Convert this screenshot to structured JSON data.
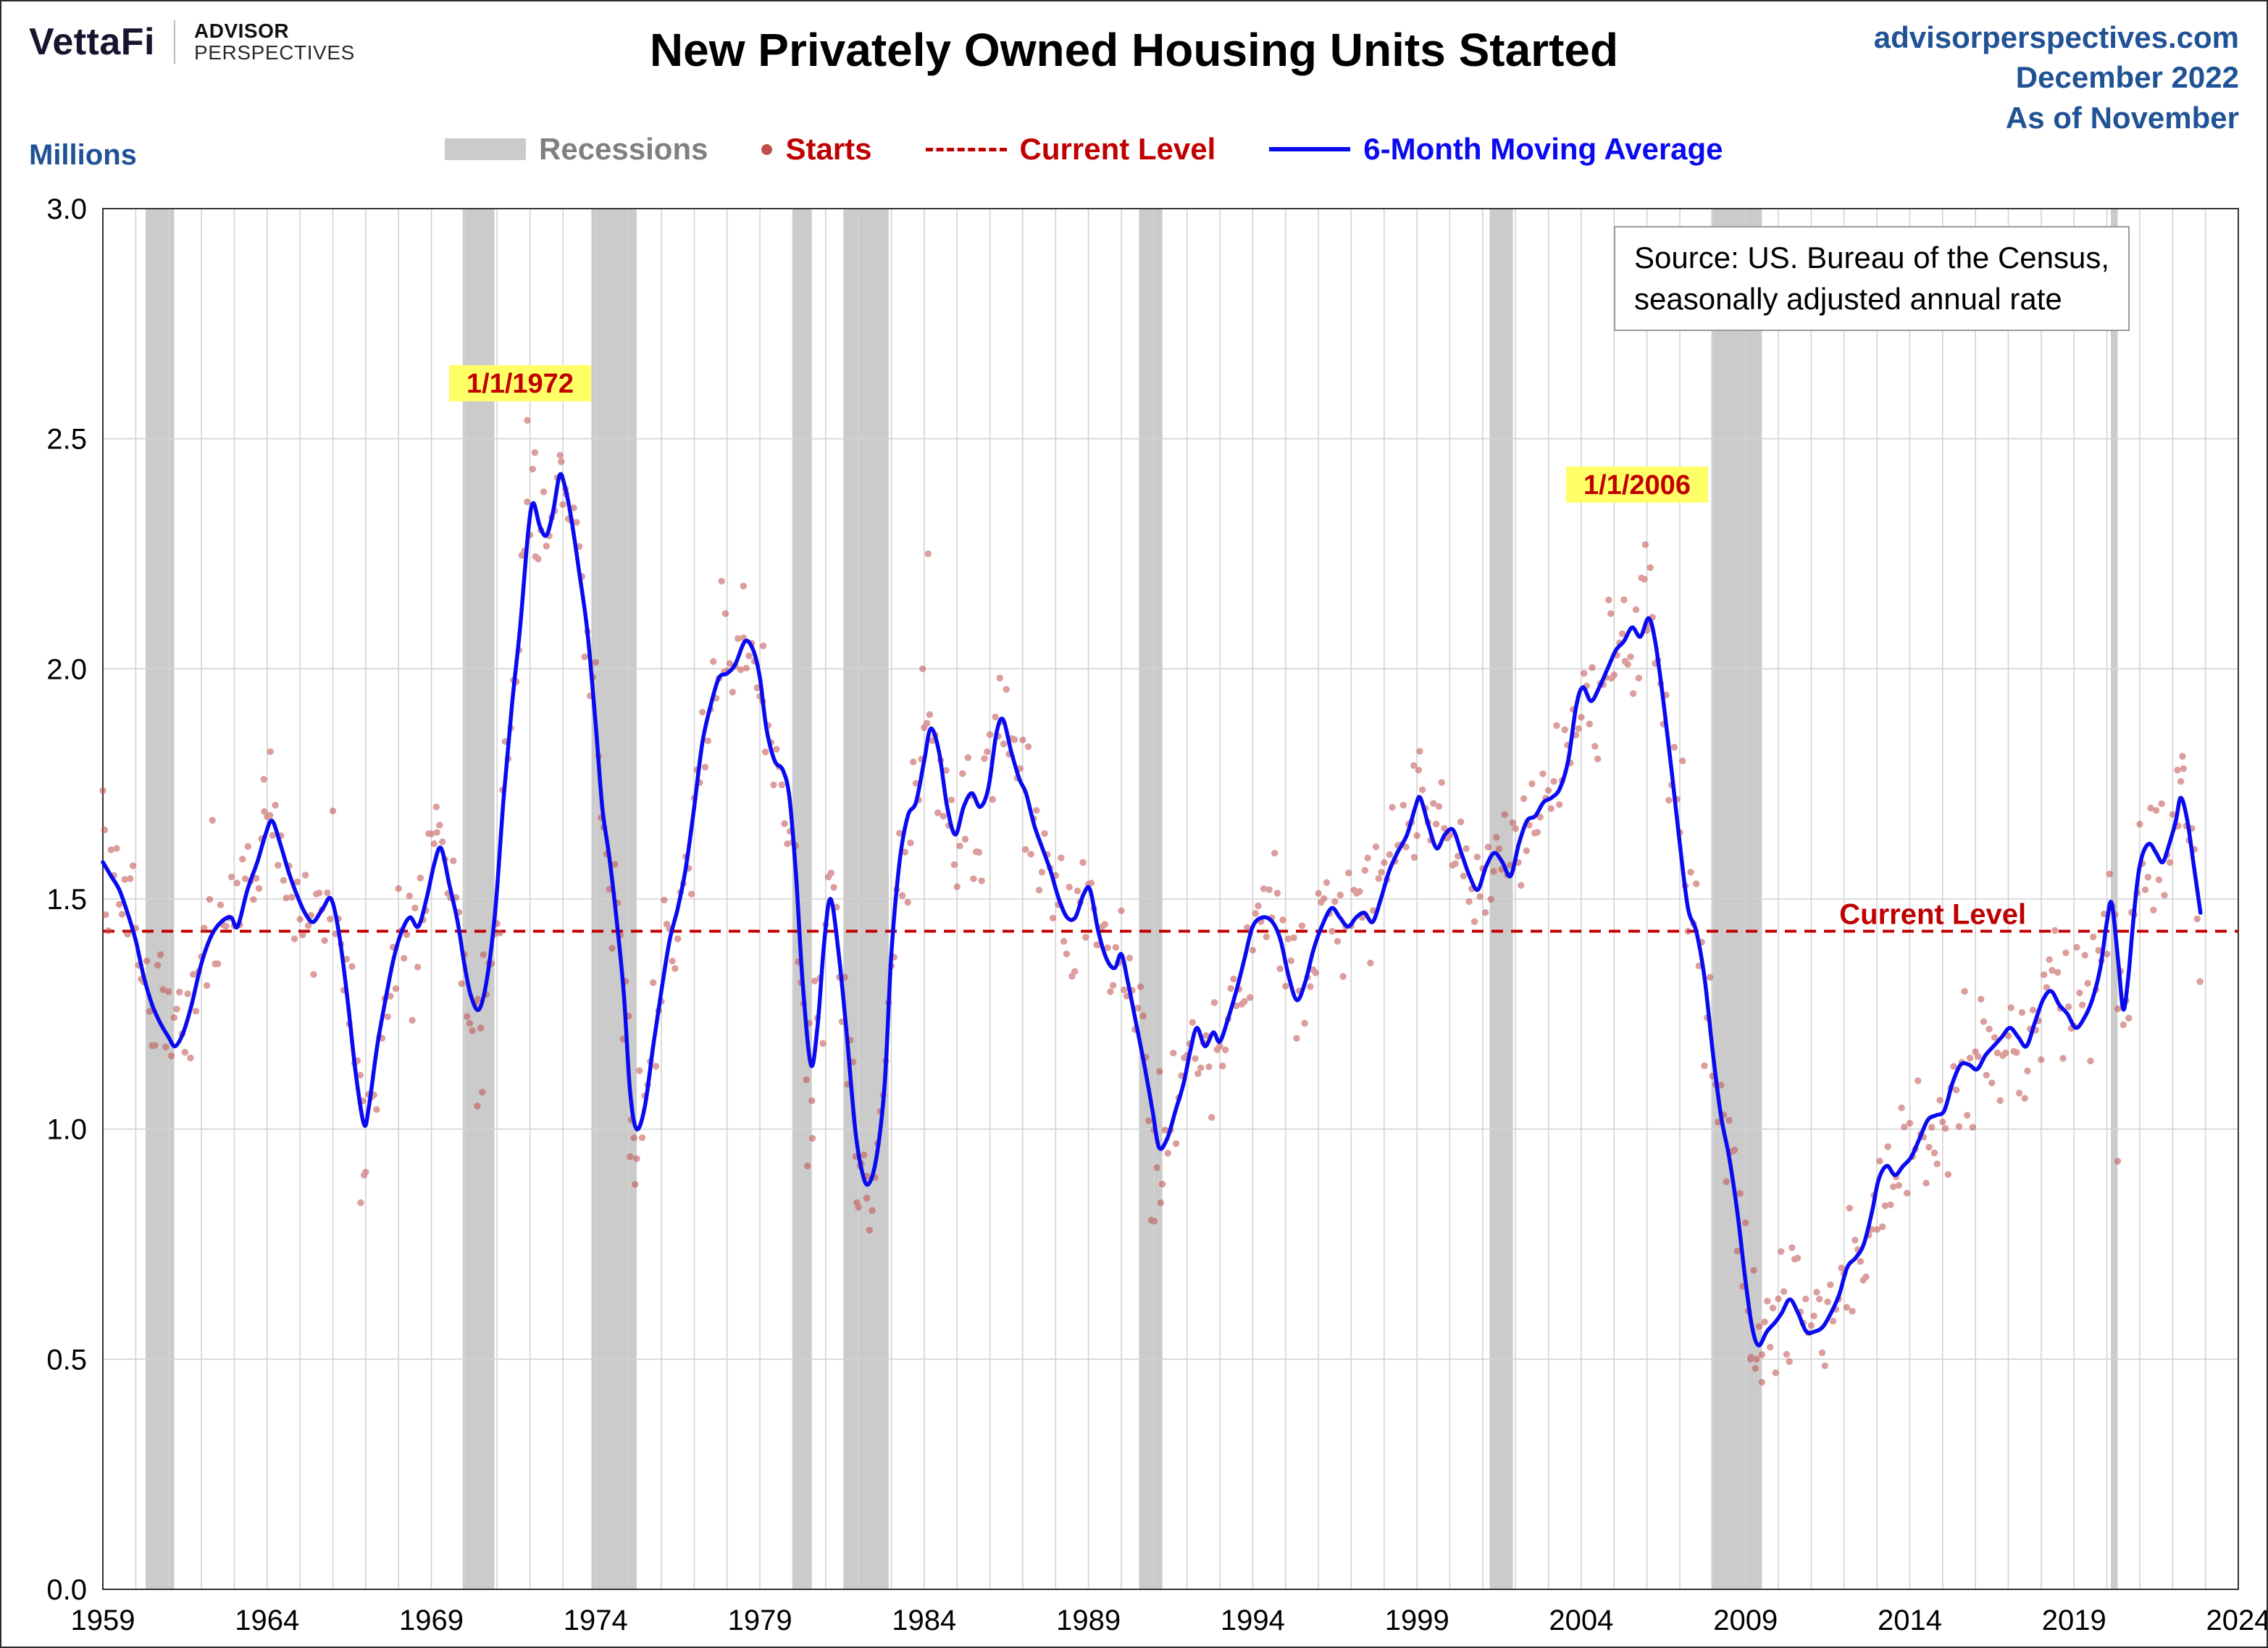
{
  "header": {
    "logo": {
      "brand": "VettaFi",
      "sub_line1": "ADVISOR",
      "sub_line2": "PERSPECTIVES"
    },
    "title": "New Privately Owned Housing Units Started",
    "meta": {
      "site": "advisorperspectives.com",
      "date": "December 2022",
      "as_of": "As of November"
    }
  },
  "legend": {
    "y_unit_label": "Millions",
    "items": [
      {
        "label": "Recessions"
      },
      {
        "label": "Starts"
      },
      {
        "label": "Current Level"
      },
      {
        "label": "6-Month Moving Average"
      }
    ]
  },
  "source_box": {
    "line1": "Source: US. Bureau of the Census,",
    "line2": "seasonally adjusted annual rate"
  },
  "colors": {
    "header_blue": "#205296",
    "ma_line": "#0a0af0",
    "current_level": "#c00000",
    "starts_dot": "#c0504d",
    "recession": "#cbcbcb",
    "annotation_bg": "#ffff66",
    "grid": "#d3d3d3",
    "frame": "#333333",
    "legend_gray": "#808080"
  },
  "chart_data": {
    "type": "scatter+line",
    "title": "New Privately Owned Housing Units Started",
    "ylabel": "Millions",
    "xlim": [
      1959,
      2024
    ],
    "ylim": [
      0.0,
      3.0
    ],
    "x_ticks": [
      1959,
      1964,
      1969,
      1974,
      1979,
      1984,
      1989,
      1994,
      1999,
      2004,
      2009,
      2014,
      2019,
      2024
    ],
    "y_ticks": [
      0.0,
      0.5,
      1.0,
      1.5,
      2.0,
      2.5,
      3.0
    ],
    "grid": true,
    "legend_position": "top",
    "current_level": 1.43,
    "current_level_label": "Current Level",
    "current_level_label_x": 2014.7,
    "annotations": [
      {
        "text": "1/1/1972",
        "x": 1971.7,
        "y": 2.6
      },
      {
        "text": "1/1/2006",
        "x": 2005.7,
        "y": 2.38
      }
    ],
    "recessions": [
      [
        1960.3,
        1961.17
      ],
      [
        1969.95,
        1970.92
      ],
      [
        1973.87,
        1975.25
      ],
      [
        1980.0,
        1980.58
      ],
      [
        1981.54,
        1982.92
      ],
      [
        1990.54,
        1991.25
      ],
      [
        2001.21,
        2001.92
      ],
      [
        2007.96,
        2009.5
      ],
      [
        2020.12,
        2020.33
      ]
    ],
    "series": [
      {
        "name": "Starts",
        "style": "scatter"
      },
      {
        "name": "6-Month Moving Average",
        "style": "line"
      }
    ],
    "moving_average": [
      [
        1959.0,
        1.58
      ],
      [
        1959.25,
        1.55
      ],
      [
        1959.5,
        1.52
      ],
      [
        1959.75,
        1.47
      ],
      [
        1960.0,
        1.41
      ],
      [
        1960.25,
        1.33
      ],
      [
        1960.5,
        1.27
      ],
      [
        1960.75,
        1.23
      ],
      [
        1961.0,
        1.2
      ],
      [
        1961.2,
        1.18
      ],
      [
        1961.45,
        1.21
      ],
      [
        1961.7,
        1.27
      ],
      [
        1962.0,
        1.36
      ],
      [
        1962.3,
        1.42
      ],
      [
        1962.6,
        1.45
      ],
      [
        1962.9,
        1.46
      ],
      [
        1963.1,
        1.44
      ],
      [
        1963.4,
        1.52
      ],
      [
        1963.7,
        1.58
      ],
      [
        1963.95,
        1.64
      ],
      [
        1964.15,
        1.67
      ],
      [
        1964.4,
        1.62
      ],
      [
        1964.65,
        1.56
      ],
      [
        1964.9,
        1.51
      ],
      [
        1965.15,
        1.47
      ],
      [
        1965.4,
        1.45
      ],
      [
        1965.7,
        1.48
      ],
      [
        1965.95,
        1.5
      ],
      [
        1966.2,
        1.42
      ],
      [
        1966.45,
        1.28
      ],
      [
        1966.7,
        1.12
      ],
      [
        1966.95,
        1.01
      ],
      [
        1967.1,
        1.05
      ],
      [
        1967.35,
        1.18
      ],
      [
        1967.6,
        1.28
      ],
      [
        1967.85,
        1.37
      ],
      [
        1968.1,
        1.43
      ],
      [
        1968.35,
        1.46
      ],
      [
        1968.6,
        1.44
      ],
      [
        1968.85,
        1.5
      ],
      [
        1969.1,
        1.58
      ],
      [
        1969.3,
        1.61
      ],
      [
        1969.55,
        1.53
      ],
      [
        1969.8,
        1.45
      ],
      [
        1970.0,
        1.36
      ],
      [
        1970.2,
        1.29
      ],
      [
        1970.45,
        1.26
      ],
      [
        1970.7,
        1.33
      ],
      [
        1970.95,
        1.48
      ],
      [
        1971.2,
        1.72
      ],
      [
        1971.45,
        1.92
      ],
      [
        1971.7,
        2.09
      ],
      [
        1971.95,
        2.3
      ],
      [
        1972.1,
        2.36
      ],
      [
        1972.3,
        2.31
      ],
      [
        1972.5,
        2.29
      ],
      [
        1972.7,
        2.34
      ],
      [
        1972.9,
        2.42
      ],
      [
        1973.05,
        2.4
      ],
      [
        1973.25,
        2.33
      ],
      [
        1973.5,
        2.21
      ],
      [
        1973.75,
        2.08
      ],
      [
        1974.0,
        1.88
      ],
      [
        1974.2,
        1.7
      ],
      [
        1974.4,
        1.6
      ],
      [
        1974.6,
        1.48
      ],
      [
        1974.85,
        1.3
      ],
      [
        1975.05,
        1.08
      ],
      [
        1975.25,
        1.0
      ],
      [
        1975.5,
        1.05
      ],
      [
        1975.75,
        1.18
      ],
      [
        1976.0,
        1.3
      ],
      [
        1976.25,
        1.41
      ],
      [
        1976.5,
        1.48
      ],
      [
        1976.75,
        1.57
      ],
      [
        1977.0,
        1.7
      ],
      [
        1977.25,
        1.84
      ],
      [
        1977.5,
        1.92
      ],
      [
        1977.75,
        1.98
      ],
      [
        1978.0,
        1.99
      ],
      [
        1978.25,
        2.01
      ],
      [
        1978.55,
        2.06
      ],
      [
        1978.8,
        2.04
      ],
      [
        1979.0,
        1.98
      ],
      [
        1979.2,
        1.87
      ],
      [
        1979.45,
        1.8
      ],
      [
        1979.7,
        1.78
      ],
      [
        1979.9,
        1.72
      ],
      [
        1980.1,
        1.55
      ],
      [
        1980.3,
        1.32
      ],
      [
        1980.55,
        1.14
      ],
      [
        1980.75,
        1.22
      ],
      [
        1980.95,
        1.4
      ],
      [
        1981.15,
        1.5
      ],
      [
        1981.4,
        1.38
      ],
      [
        1981.65,
        1.2
      ],
      [
        1981.9,
        1.0
      ],
      [
        1982.1,
        0.91
      ],
      [
        1982.3,
        0.88
      ],
      [
        1982.55,
        0.94
      ],
      [
        1982.8,
        1.1
      ],
      [
        1983.0,
        1.38
      ],
      [
        1983.25,
        1.58
      ],
      [
        1983.5,
        1.68
      ],
      [
        1983.75,
        1.71
      ],
      [
        1984.0,
        1.8
      ],
      [
        1984.2,
        1.87
      ],
      [
        1984.45,
        1.82
      ],
      [
        1984.7,
        1.7
      ],
      [
        1984.95,
        1.64
      ],
      [
        1985.2,
        1.7
      ],
      [
        1985.45,
        1.73
      ],
      [
        1985.7,
        1.7
      ],
      [
        1985.95,
        1.74
      ],
      [
        1986.2,
        1.86
      ],
      [
        1986.4,
        1.89
      ],
      [
        1986.65,
        1.82
      ],
      [
        1986.9,
        1.76
      ],
      [
        1987.1,
        1.73
      ],
      [
        1987.35,
        1.66
      ],
      [
        1987.6,
        1.61
      ],
      [
        1987.85,
        1.56
      ],
      [
        1988.1,
        1.5
      ],
      [
        1988.35,
        1.46
      ],
      [
        1988.6,
        1.46
      ],
      [
        1988.85,
        1.51
      ],
      [
        1989.05,
        1.52
      ],
      [
        1989.3,
        1.43
      ],
      [
        1989.55,
        1.37
      ],
      [
        1989.8,
        1.35
      ],
      [
        1990.0,
        1.38
      ],
      [
        1990.2,
        1.32
      ],
      [
        1990.45,
        1.23
      ],
      [
        1990.7,
        1.14
      ],
      [
        1990.95,
        1.04
      ],
      [
        1991.15,
        0.96
      ],
      [
        1991.4,
        0.98
      ],
      [
        1991.65,
        1.04
      ],
      [
        1991.9,
        1.1
      ],
      [
        1992.1,
        1.17
      ],
      [
        1992.3,
        1.22
      ],
      [
        1992.55,
        1.18
      ],
      [
        1992.8,
        1.21
      ],
      [
        1993.0,
        1.19
      ],
      [
        1993.25,
        1.24
      ],
      [
        1993.5,
        1.3
      ],
      [
        1993.75,
        1.37
      ],
      [
        1994.0,
        1.44
      ],
      [
        1994.3,
        1.46
      ],
      [
        1994.6,
        1.45
      ],
      [
        1994.85,
        1.41
      ],
      [
        1995.1,
        1.33
      ],
      [
        1995.35,
        1.28
      ],
      [
        1995.6,
        1.32
      ],
      [
        1995.85,
        1.39
      ],
      [
        1996.1,
        1.44
      ],
      [
        1996.4,
        1.48
      ],
      [
        1996.65,
        1.46
      ],
      [
        1996.9,
        1.44
      ],
      [
        1997.15,
        1.46
      ],
      [
        1997.4,
        1.47
      ],
      [
        1997.65,
        1.45
      ],
      [
        1997.9,
        1.5
      ],
      [
        1998.15,
        1.56
      ],
      [
        1998.4,
        1.6
      ],
      [
        1998.7,
        1.64
      ],
      [
        1998.95,
        1.7
      ],
      [
        1999.1,
        1.72
      ],
      [
        1999.35,
        1.66
      ],
      [
        1999.6,
        1.61
      ],
      [
        1999.85,
        1.64
      ],
      [
        2000.1,
        1.65
      ],
      [
        2000.35,
        1.6
      ],
      [
        2000.6,
        1.55
      ],
      [
        2000.85,
        1.52
      ],
      [
        2001.1,
        1.57
      ],
      [
        2001.35,
        1.6
      ],
      [
        2001.6,
        1.58
      ],
      [
        2001.85,
        1.55
      ],
      [
        2002.1,
        1.62
      ],
      [
        2002.35,
        1.67
      ],
      [
        2002.6,
        1.68
      ],
      [
        2002.85,
        1.71
      ],
      [
        2003.1,
        1.72
      ],
      [
        2003.35,
        1.74
      ],
      [
        2003.6,
        1.8
      ],
      [
        2003.85,
        1.92
      ],
      [
        2004.05,
        1.96
      ],
      [
        2004.3,
        1.93
      ],
      [
        2004.55,
        1.96
      ],
      [
        2004.8,
        2.0
      ],
      [
        2005.05,
        2.04
      ],
      [
        2005.3,
        2.06
      ],
      [
        2005.55,
        2.09
      ],
      [
        2005.8,
        2.07
      ],
      [
        2006.05,
        2.11
      ],
      [
        2006.25,
        2.06
      ],
      [
        2006.5,
        1.93
      ],
      [
        2006.75,
        1.78
      ],
      [
        2007.0,
        1.62
      ],
      [
        2007.25,
        1.48
      ],
      [
        2007.5,
        1.43
      ],
      [
        2007.75,
        1.33
      ],
      [
        2008.0,
        1.17
      ],
      [
        2008.25,
        1.03
      ],
      [
        2008.5,
        0.94
      ],
      [
        2008.75,
        0.82
      ],
      [
        2009.0,
        0.67
      ],
      [
        2009.2,
        0.57
      ],
      [
        2009.4,
        0.53
      ],
      [
        2009.65,
        0.56
      ],
      [
        2009.9,
        0.58
      ],
      [
        2010.1,
        0.6
      ],
      [
        2010.35,
        0.63
      ],
      [
        2010.6,
        0.6
      ],
      [
        2010.85,
        0.56
      ],
      [
        2011.1,
        0.56
      ],
      [
        2011.35,
        0.57
      ],
      [
        2011.6,
        0.6
      ],
      [
        2011.85,
        0.64
      ],
      [
        2012.1,
        0.7
      ],
      [
        2012.35,
        0.72
      ],
      [
        2012.6,
        0.75
      ],
      [
        2012.85,
        0.82
      ],
      [
        2013.05,
        0.89
      ],
      [
        2013.3,
        0.92
      ],
      [
        2013.55,
        0.9
      ],
      [
        2013.8,
        0.92
      ],
      [
        2014.05,
        0.94
      ],
      [
        2014.3,
        0.98
      ],
      [
        2014.55,
        1.02
      ],
      [
        2014.8,
        1.03
      ],
      [
        2015.05,
        1.04
      ],
      [
        2015.3,
        1.1
      ],
      [
        2015.55,
        1.14
      ],
      [
        2015.8,
        1.14
      ],
      [
        2016.05,
        1.13
      ],
      [
        2016.3,
        1.16
      ],
      [
        2016.55,
        1.18
      ],
      [
        2016.8,
        1.2
      ],
      [
        2017.05,
        1.22
      ],
      [
        2017.3,
        1.2
      ],
      [
        2017.55,
        1.18
      ],
      [
        2017.8,
        1.23
      ],
      [
        2018.05,
        1.28
      ],
      [
        2018.3,
        1.3
      ],
      [
        2018.55,
        1.27
      ],
      [
        2018.8,
        1.25
      ],
      [
        2019.05,
        1.22
      ],
      [
        2019.3,
        1.24
      ],
      [
        2019.55,
        1.28
      ],
      [
        2019.8,
        1.35
      ],
      [
        2020.0,
        1.45
      ],
      [
        2020.15,
        1.49
      ],
      [
        2020.35,
        1.36
      ],
      [
        2020.5,
        1.26
      ],
      [
        2020.65,
        1.33
      ],
      [
        2020.8,
        1.45
      ],
      [
        2020.95,
        1.55
      ],
      [
        2021.1,
        1.6
      ],
      [
        2021.3,
        1.62
      ],
      [
        2021.5,
        1.6
      ],
      [
        2021.7,
        1.58
      ],
      [
        2021.9,
        1.62
      ],
      [
        2022.1,
        1.67
      ],
      [
        2022.25,
        1.72
      ],
      [
        2022.45,
        1.67
      ],
      [
        2022.65,
        1.57
      ],
      [
        2022.85,
        1.47
      ]
    ],
    "scatter_highlights": [
      [
        1971.92,
        2.54
      ],
      [
        1972.15,
        2.47
      ],
      [
        1972.95,
        2.45
      ],
      [
        1973.1,
        2.38
      ],
      [
        1984.12,
        2.25
      ],
      [
        1983.95,
        2.0
      ],
      [
        1986.3,
        1.98
      ],
      [
        2005.95,
        2.27
      ],
      [
        2006.1,
        2.22
      ],
      [
        2005.3,
        2.15
      ],
      [
        2004.9,
        2.12
      ],
      [
        1978.5,
        2.18
      ],
      [
        1977.95,
        2.12
      ],
      [
        1979.1,
        2.05
      ],
      [
        1966.85,
        0.84
      ],
      [
        1966.95,
        0.9
      ],
      [
        1975.2,
        0.88
      ],
      [
        1975.05,
        0.94
      ],
      [
        1970.4,
        1.05
      ],
      [
        1970.55,
        1.08
      ],
      [
        1980.45,
        0.92
      ],
      [
        1980.6,
        0.98
      ],
      [
        1981.95,
        0.84
      ],
      [
        1982.25,
        0.85
      ],
      [
        1982.05,
        0.92
      ],
      [
        1991.0,
        0.8
      ],
      [
        1991.2,
        0.84
      ],
      [
        2009.3,
        0.48
      ],
      [
        2009.15,
        0.5
      ],
      [
        2009.5,
        0.51
      ],
      [
        2020.33,
        0.93
      ],
      [
        2022.3,
        1.81
      ],
      [
        2022.15,
        1.78
      ],
      [
        1998.9,
        1.79
      ],
      [
        1999.05,
        1.78
      ],
      [
        1959.05,
        1.65
      ],
      [
        1964.1,
        1.82
      ],
      [
        1963.9,
        1.76
      ],
      [
        1969.15,
        1.7
      ]
    ]
  }
}
